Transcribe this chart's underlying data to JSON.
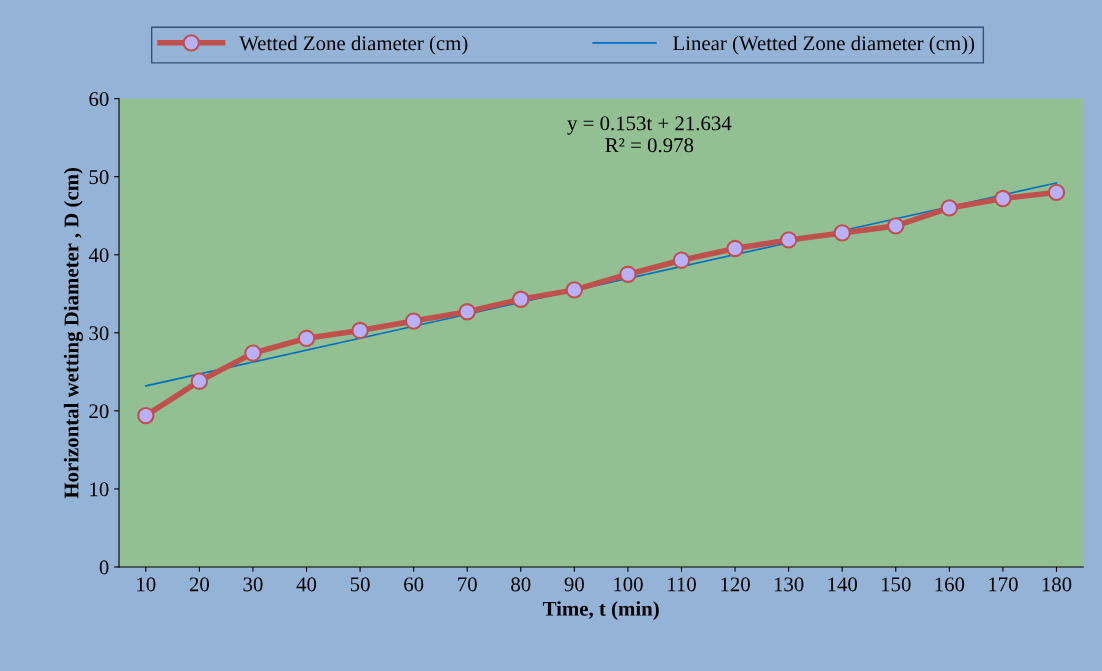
{
  "chart_data": {
    "type": "line",
    "xlabel": "Time, t (min)",
    "ylabel": "Horizontal wetting Diameter , D (cm)",
    "x": [
      10,
      20,
      30,
      40,
      50,
      60,
      70,
      80,
      90,
      100,
      110,
      120,
      130,
      140,
      150,
      160,
      170,
      180
    ],
    "xlim": [
      5,
      185
    ],
    "xticks": [
      10,
      20,
      30,
      40,
      50,
      60,
      70,
      80,
      90,
      100,
      110,
      120,
      130,
      140,
      150,
      160,
      170,
      180
    ],
    "ylim": [
      0,
      60
    ],
    "yticks": [
      0,
      10,
      20,
      30,
      40,
      50,
      60
    ],
    "grid": false,
    "legend": "top",
    "annotations": [
      "y = 0.153t + 21.634\nR² = 0.978"
    ],
    "series": [
      {
        "name": "Wetted Zone diameter (cm)",
        "color": "#c0504d",
        "marker": "circle",
        "line_style": "solid",
        "values": [
          19.4,
          23.8,
          27.4,
          29.3,
          30.3,
          31.5,
          32.7,
          34.3,
          35.5,
          37.5,
          39.3,
          40.8,
          41.9,
          42.8,
          43.7,
          46.0,
          47.2,
          48.0
        ]
      },
      {
        "name": "Linear (Wetted Zone diameter (cm))",
        "type": "line",
        "color": "#0070c0",
        "marker": "none",
        "line_style": "solid",
        "x": [
          10,
          180
        ],
        "values": [
          23.2,
          49.2
        ]
      }
    ]
  }
}
